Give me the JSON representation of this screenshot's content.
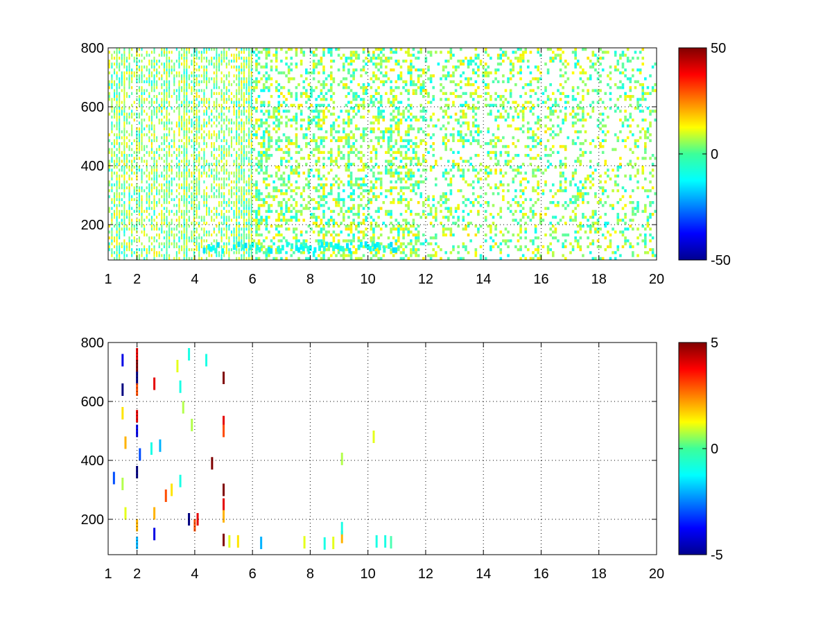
{
  "chart_data": [
    {
      "type": "heatmap",
      "title": "",
      "xlabel": "",
      "ylabel": "",
      "xlim": [
        1,
        20
      ],
      "ylim": [
        80,
        800
      ],
      "x_ticks": [
        1,
        2,
        4,
        6,
        8,
        10,
        12,
        14,
        16,
        18,
        20
      ],
      "x_tick_labels": [
        "1",
        "2",
        "4",
        "6",
        "8",
        "10",
        "12",
        "14",
        "16",
        "18",
        "20"
      ],
      "y_ticks": [
        200,
        400,
        600,
        800
      ],
      "y_tick_labels": [
        "200",
        "400",
        "600",
        "800"
      ],
      "grid": true,
      "colormap": "jet",
      "clim": [
        -50,
        50
      ],
      "colorbar": {
        "ticks": [
          -50,
          0,
          50
        ],
        "tick_labels": [
          "-50",
          "0",
          "50"
        ],
        "placement": "right"
      },
      "description_of_values": "sparse scattered cells with values mostly between -15 and 15; denser at low x; cluster near y 100-130 from x 4 to 11",
      "density": 0.55,
      "value_spread": 14,
      "dense_rows": [
        {
          "x_from": 4.2,
          "x_to": 11,
          "y_from": 110,
          "y_to": 135,
          "value": -12
        }
      ]
    },
    {
      "type": "heatmap",
      "title": "",
      "xlabel": "",
      "ylabel": "",
      "xlim": [
        1,
        20
      ],
      "ylim": [
        80,
        800
      ],
      "x_ticks": [
        1,
        2,
        4,
        6,
        8,
        10,
        12,
        14,
        16,
        18,
        20
      ],
      "x_tick_labels": [
        "1",
        "2",
        "4",
        "6",
        "8",
        "10",
        "12",
        "14",
        "16",
        "18",
        "20"
      ],
      "y_ticks": [
        200,
        400,
        600,
        800
      ],
      "y_tick_labels": [
        "200",
        "400",
        "600",
        "800"
      ],
      "grid": true,
      "colormap": "jet",
      "clim": [
        -5,
        5
      ],
      "colorbar": {
        "ticks": [
          -5,
          0,
          5
        ],
        "tick_labels": [
          "-5",
          "0",
          "5"
        ],
        "placement": "right"
      },
      "description_of_values": "very sparse cells, mostly at x < 5.2; strong positive column near x 5; small clusters near y 120 around x 9-11",
      "cells": [
        {
          "x": 1.5,
          "y": 740,
          "v": -4
        },
        {
          "x": 1.5,
          "y": 640,
          "v": -5
        },
        {
          "x": 1.5,
          "y": 560,
          "v": 1.5
        },
        {
          "x": 1.6,
          "y": 460,
          "v": 2
        },
        {
          "x": 1.2,
          "y": 340,
          "v": -3
        },
        {
          "x": 1.5,
          "y": 320,
          "v": 0.5
        },
        {
          "x": 1.6,
          "y": 220,
          "v": 1
        },
        {
          "x": 2.0,
          "y": 760,
          "v": 4
        },
        {
          "x": 2.0,
          "y": 720,
          "v": 5
        },
        {
          "x": 2.0,
          "y": 680,
          "v": -5
        },
        {
          "x": 2.0,
          "y": 640,
          "v": 3
        },
        {
          "x": 2.0,
          "y": 550,
          "v": 4
        },
        {
          "x": 2.0,
          "y": 500,
          "v": -4
        },
        {
          "x": 2.1,
          "y": 420,
          "v": -3
        },
        {
          "x": 2.0,
          "y": 360,
          "v": -5
        },
        {
          "x": 2.0,
          "y": 180,
          "v": 2
        },
        {
          "x": 2.0,
          "y": 120,
          "v": -2
        },
        {
          "x": 2.6,
          "y": 660,
          "v": 4
        },
        {
          "x": 2.5,
          "y": 440,
          "v": -1
        },
        {
          "x": 2.8,
          "y": 450,
          "v": -2
        },
        {
          "x": 2.6,
          "y": 220,
          "v": 2
        },
        {
          "x": 2.6,
          "y": 150,
          "v": -4
        },
        {
          "x": 3.0,
          "y": 280,
          "v": 3
        },
        {
          "x": 3.2,
          "y": 300,
          "v": 1.5
        },
        {
          "x": 3.4,
          "y": 720,
          "v": 1
        },
        {
          "x": 3.5,
          "y": 650,
          "v": -1
        },
        {
          "x": 3.6,
          "y": 580,
          "v": 0.5
        },
        {
          "x": 3.8,
          "y": 760,
          "v": -1
        },
        {
          "x": 3.9,
          "y": 520,
          "v": 0.5
        },
        {
          "x": 3.5,
          "y": 330,
          "v": -1
        },
        {
          "x": 3.8,
          "y": 200,
          "v": -5
        },
        {
          "x": 4.0,
          "y": 180,
          "v": 3
        },
        {
          "x": 4.1,
          "y": 200,
          "v": 4
        },
        {
          "x": 4.4,
          "y": 740,
          "v": -1
        },
        {
          "x": 4.6,
          "y": 390,
          "v": 5
        },
        {
          "x": 5.0,
          "y": 680,
          "v": 5
        },
        {
          "x": 5.0,
          "y": 530,
          "v": 4
        },
        {
          "x": 5.0,
          "y": 500,
          "v": 3
        },
        {
          "x": 5.0,
          "y": 300,
          "v": 5
        },
        {
          "x": 5.0,
          "y": 250,
          "v": 4
        },
        {
          "x": 5.0,
          "y": 210,
          "v": 2
        },
        {
          "x": 5.0,
          "y": 130,
          "v": 5
        },
        {
          "x": 5.2,
          "y": 125,
          "v": 1
        },
        {
          "x": 5.5,
          "y": 125,
          "v": 1.5
        },
        {
          "x": 6.3,
          "y": 120,
          "v": -2
        },
        {
          "x": 7.8,
          "y": 122,
          "v": 1
        },
        {
          "x": 8.5,
          "y": 118,
          "v": -1
        },
        {
          "x": 8.8,
          "y": 120,
          "v": 1
        },
        {
          "x": 9.1,
          "y": 140,
          "v": 2
        },
        {
          "x": 9.1,
          "y": 170,
          "v": -1
        },
        {
          "x": 9.1,
          "y": 405,
          "v": 0.5
        },
        {
          "x": 10.2,
          "y": 480,
          "v": 1
        },
        {
          "x": 10.3,
          "y": 125,
          "v": -1
        },
        {
          "x": 10.6,
          "y": 125,
          "v": -1
        },
        {
          "x": 10.8,
          "y": 122,
          "v": -0.5
        }
      ]
    }
  ]
}
